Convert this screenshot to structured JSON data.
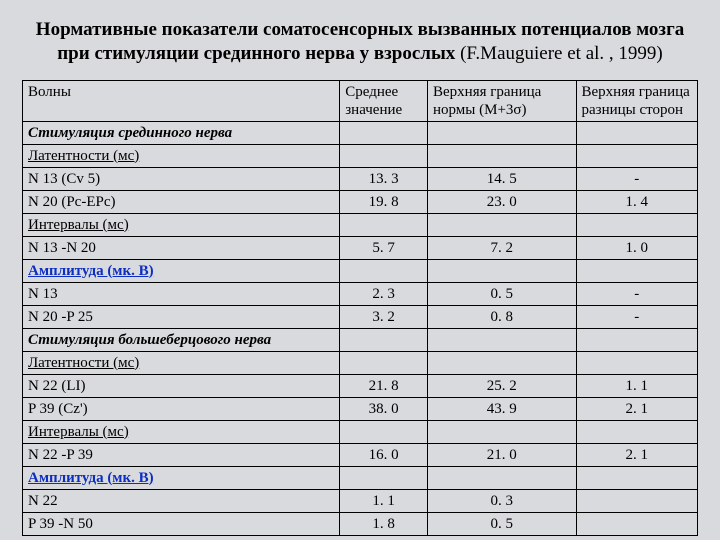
{
  "title_bold": "Нормативные показатели соматосенсорных вызванных потенциалов мозга при стимуляции срединного нерва у взрослых ",
  "title_normal": "(F.Mauguiere et al. , 1999)",
  "headers": {
    "waves": "Волны",
    "mean": "Среднее значение",
    "upper": "Верхняя граница нормы (М+3σ)",
    "diff": "Верхняя граница разницы сторон"
  },
  "rows": [
    {
      "type": "section",
      "label": "Стимуляция срединного нерва"
    },
    {
      "type": "subheader",
      "label": "Латентности (мс)"
    },
    {
      "type": "data",
      "label": "N 13 (Cv 5)",
      "mean": "13. 3",
      "upper": "14. 5",
      "diff": "-"
    },
    {
      "type": "data",
      "label": "N 20 (Pc-EPc)",
      "mean": "19. 8",
      "upper": "23. 0",
      "diff": "1. 4"
    },
    {
      "type": "subheader",
      "label": "Интервалы (мс)"
    },
    {
      "type": "data",
      "label": "N 13 -N 20",
      "mean": "5. 7",
      "upper": "7. 2",
      "diff": "1. 0"
    },
    {
      "type": "subheader_amp",
      "label": "Амплитуда (мк. В)"
    },
    {
      "type": "data",
      "label": "N 13",
      "mean": "2. 3",
      "upper": "0. 5",
      "diff": "-"
    },
    {
      "type": "data",
      "label": "N 20 -P 25",
      "mean": "3. 2",
      "upper": "0. 8",
      "diff": "-"
    },
    {
      "type": "section",
      "label": "Стимуляция большеберцового нерва"
    },
    {
      "type": "subheader",
      "label": "Латентности (мс)"
    },
    {
      "type": "data",
      "label": "N 22 (LI)",
      "mean": "21. 8",
      "upper": "25. 2",
      "diff": "1. 1"
    },
    {
      "type": "data",
      "label": "P 39 (Cz')",
      "mean": "38. 0",
      "upper": "43. 9",
      "diff": "2. 1"
    },
    {
      "type": "subheader",
      "label": "Интервалы (мс)"
    },
    {
      "type": "data",
      "label": "N 22 -P 39",
      "mean": "16. 0",
      "upper": "21. 0",
      "diff": "2. 1"
    },
    {
      "type": "subheader_amp",
      "label": "Амплитуда (мк. В)"
    },
    {
      "type": "data",
      "label": "N 22",
      "mean": "1. 1",
      "upper": "0. 3",
      "diff": ""
    },
    {
      "type": "data",
      "label": "P 39 -N 50",
      "mean": "1. 8",
      "upper": "0. 5",
      "diff": ""
    }
  ]
}
